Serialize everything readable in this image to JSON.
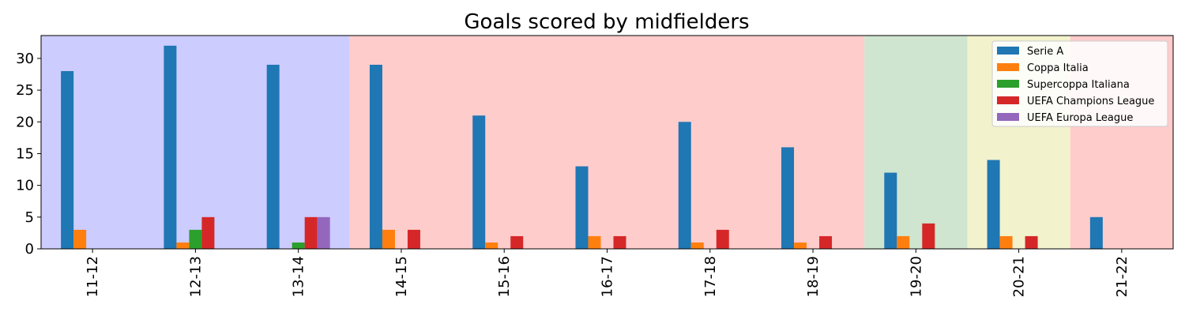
{
  "chart_data": {
    "type": "bar",
    "title": "Goals scored by midfielders",
    "xlabel": "",
    "ylabel": "",
    "ylim": [
      0,
      33.6
    ],
    "yticks": [
      0,
      5,
      10,
      15,
      20,
      25,
      30
    ],
    "categories": [
      "11-12",
      "12-13",
      "13-14",
      "14-15",
      "15-16",
      "16-17",
      "17-18",
      "18-19",
      "19-20",
      "20-21",
      "21-22"
    ],
    "series": [
      {
        "name": "Serie A",
        "color": "#1f77b4",
        "values": [
          28,
          32,
          29,
          29,
          21,
          13,
          20,
          16,
          12,
          14,
          5
        ]
      },
      {
        "name": "Coppa Italia",
        "color": "#ff7f0e",
        "values": [
          3,
          1,
          0,
          3,
          1,
          2,
          1,
          1,
          2,
          2,
          0
        ]
      },
      {
        "name": "Supercoppa Italiana",
        "color": "#2ca02c",
        "values": [
          0,
          3,
          1,
          0,
          0,
          0,
          0,
          0,
          0,
          0,
          0
        ]
      },
      {
        "name": "UEFA Champions League",
        "color": "#d62728",
        "values": [
          0,
          5,
          5,
          3,
          2,
          2,
          3,
          2,
          4,
          2,
          0
        ]
      },
      {
        "name": "UEFA Europa League",
        "color": "#9467bd",
        "values": [
          0,
          0,
          5,
          0,
          0,
          0,
          0,
          0,
          0,
          0,
          0
        ]
      }
    ],
    "background_bands": [
      {
        "from": "11-12",
        "to": "13-14",
        "color": "#ccccff"
      },
      {
        "from": "14-15",
        "to": "18-19",
        "color": "#ffcccc"
      },
      {
        "from": "19-20",
        "to": "19-20",
        "color": "#cfe5cf"
      },
      {
        "from": "20-21",
        "to": "20-21",
        "color": "#f2f2cc"
      },
      {
        "from": "21-22",
        "to": "21-22",
        "color": "#ffcccc"
      }
    ],
    "grid": false,
    "legend_position": "top-right",
    "x_tick_rotation": "vertical"
  }
}
